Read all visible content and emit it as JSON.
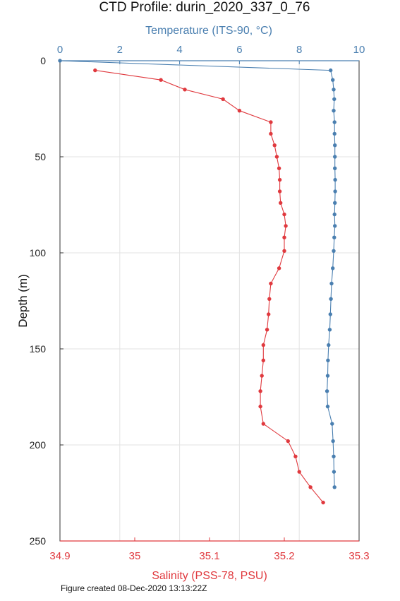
{
  "chart_data": {
    "type": "line",
    "title": "CTD Profile: durin_2020_337_0_76",
    "ylabel": "Depth (m)",
    "ylim": [
      0,
      250
    ],
    "yticks": [
      0,
      50,
      100,
      150,
      200,
      250
    ],
    "y_inverted": true,
    "grid": true,
    "temperature_axis": {
      "label": "Temperature (ITS-90, °C)",
      "position": "top",
      "color": "#4a7fb0",
      "lim": [
        0,
        10
      ],
      "ticks": [
        "0",
        "2",
        "4",
        "6",
        "8",
        "10"
      ]
    },
    "salinity_axis": {
      "label": "Salinity (PSS-78, PSU)",
      "position": "bottom",
      "color": "#e0393e",
      "lim": [
        34.9,
        35.3
      ],
      "ticks": [
        "34.9",
        "35",
        "35.1",
        "35.2",
        "35.3"
      ]
    },
    "series": [
      {
        "axis": "temperature",
        "color": "#4a7fb0",
        "points": [
          [
            0,
            0
          ],
          [
            9.05,
            5
          ],
          [
            9.12,
            10
          ],
          [
            9.15,
            15
          ],
          [
            9.17,
            20
          ],
          [
            9.15,
            26
          ],
          [
            9.18,
            32
          ],
          [
            9.18,
            38
          ],
          [
            9.19,
            44
          ],
          [
            9.19,
            50
          ],
          [
            9.19,
            56
          ],
          [
            9.2,
            62
          ],
          [
            9.2,
            68
          ],
          [
            9.19,
            74
          ],
          [
            9.18,
            80
          ],
          [
            9.19,
            86
          ],
          [
            9.17,
            92
          ],
          [
            9.15,
            99
          ],
          [
            9.12,
            108
          ],
          [
            9.08,
            116
          ],
          [
            9.06,
            124
          ],
          [
            9.04,
            132
          ],
          [
            9.02,
            140
          ],
          [
            8.98,
            148
          ],
          [
            8.96,
            156
          ],
          [
            8.95,
            164
          ],
          [
            8.93,
            172
          ],
          [
            8.95,
            180
          ],
          [
            9.1,
            189
          ],
          [
            9.13,
            198
          ],
          [
            9.15,
            206
          ],
          [
            9.16,
            214
          ],
          [
            9.18,
            222
          ]
        ]
      },
      {
        "axis": "salinity",
        "color": "#e0393e",
        "points": [
          [
            34.947,
            5
          ],
          [
            35.035,
            10
          ],
          [
            35.067,
            15
          ],
          [
            35.118,
            20
          ],
          [
            35.14,
            26
          ],
          [
            35.182,
            32
          ],
          [
            35.182,
            38
          ],
          [
            35.187,
            44
          ],
          [
            35.19,
            50
          ],
          [
            35.193,
            56
          ],
          [
            35.194,
            62
          ],
          [
            35.194,
            68
          ],
          [
            35.195,
            74
          ],
          [
            35.2,
            80
          ],
          [
            35.202,
            86
          ],
          [
            35.2,
            92
          ],
          [
            35.2,
            99
          ],
          [
            35.193,
            108
          ],
          [
            35.182,
            116
          ],
          [
            35.18,
            124
          ],
          [
            35.179,
            132
          ],
          [
            35.177,
            140
          ],
          [
            35.172,
            148
          ],
          [
            35.172,
            156
          ],
          [
            35.17,
            164
          ],
          [
            35.168,
            172
          ],
          [
            35.168,
            180
          ],
          [
            35.172,
            189
          ],
          [
            35.205,
            198
          ],
          [
            35.215,
            206
          ],
          [
            35.22,
            214
          ],
          [
            35.235,
            222
          ],
          [
            35.252,
            230
          ]
        ]
      }
    ]
  },
  "footnote": "Figure created 08-Dec-2020 13:13:22Z"
}
